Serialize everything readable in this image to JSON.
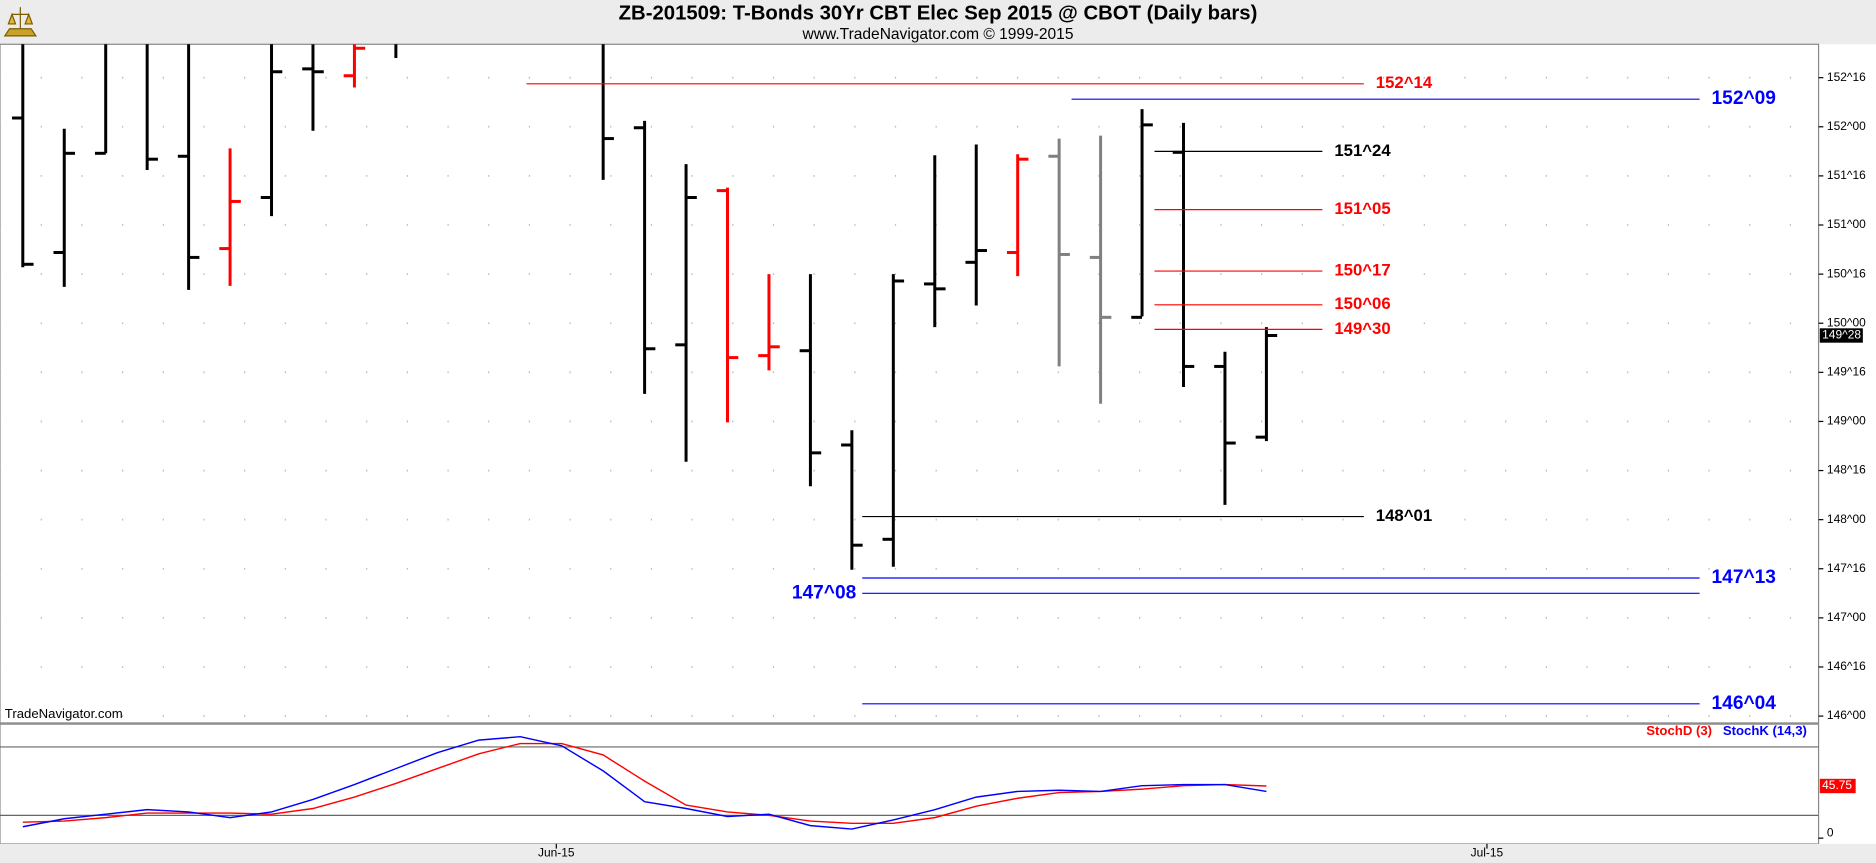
{
  "chart_data": [
    {
      "type": "ohlc",
      "title": "ZB-201509:  T-Bonds 30Yr CBT Elec Sep 2015 @ CBOT  (Daily bars)",
      "subtitle": "www.TradeNavigator.com © 1999-2015",
      "watermark": "TradeNavigator.com",
      "x": [
        0,
        1,
        2,
        3,
        4,
        5,
        6,
        7,
        8,
        9,
        10,
        11,
        12,
        13,
        14,
        15,
        16,
        17,
        18,
        19,
        20,
        21,
        22,
        23,
        24,
        25,
        26,
        27,
        28,
        29,
        30
      ],
      "open": [
        152.09,
        150.72,
        151.73,
        152.9,
        151.7,
        150.76,
        151.28,
        152.59,
        152.52,
        153.1,
        null,
        null,
        null,
        null,
        153.0,
        151.99,
        149.78,
        151.35,
        149.67,
        149.72,
        148.76,
        147.8,
        150.4,
        150.62,
        150.72,
        151.7,
        150.67,
        150.06,
        151.74,
        149.56,
        148.84
      ],
      "high": [
        153.0,
        151.98,
        153.2,
        153.2,
        153.2,
        151.78,
        153.2,
        152.84,
        152.84,
        153.2,
        null,
        null,
        null,
        null,
        153.2,
        152.06,
        151.62,
        151.38,
        150.5,
        150.5,
        148.91,
        150.5,
        151.71,
        151.82,
        151.72,
        151.88,
        151.91,
        152.18,
        152.04,
        149.71,
        149.96
      ],
      "low": [
        150.57,
        150.37,
        151.73,
        151.56,
        150.34,
        150.38,
        151.09,
        151.96,
        152.4,
        152.7,
        null,
        null,
        null,
        null,
        151.46,
        149.28,
        148.59,
        148.99,
        149.52,
        148.34,
        147.49,
        147.52,
        149.96,
        150.18,
        150.48,
        149.56,
        149.18,
        150.07,
        149.35,
        148.15,
        148.8
      ],
      "close": [
        150.6,
        151.73,
        152.9,
        151.67,
        150.67,
        151.24,
        152.56,
        152.56,
        152.8,
        152.9,
        null,
        null,
        null,
        null,
        151.88,
        149.74,
        151.28,
        149.65,
        149.76,
        148.68,
        147.74,
        150.43,
        150.35,
        150.74,
        151.67,
        150.7,
        150.06,
        152.02,
        149.56,
        148.78,
        149.875
      ],
      "colors": [
        "#000000",
        "#000000",
        "#000000",
        "#000000",
        "#000000",
        "#ff0000",
        "#000000",
        "#000000",
        "#ff0000",
        "#000000",
        "#000000",
        "#000000",
        "#000000",
        "#000000",
        "#000000",
        "#000000",
        "#000000",
        "#ff0000",
        "#ff0000",
        "#000000",
        "#000000",
        "#000000",
        "#000000",
        "#000000",
        "#ff0000",
        "#808080",
        "#808080",
        "#000000",
        "#000000",
        "#000000",
        "#000000"
      ],
      "xlim": [
        -0.55,
        43.32
      ],
      "xticks": [
        {
          "value": 12.87,
          "label": "Jun-15"
        },
        {
          "value": 35.32,
          "label": "Jul-15"
        }
      ],
      "ylim": [
        145.93,
        152.84
      ],
      "yticks": [
        {
          "value": 152.5,
          "label": "152^16"
        },
        {
          "value": 152,
          "label": "152^00"
        },
        {
          "value": 151.5,
          "label": "151^16"
        },
        {
          "value": 151,
          "label": "151^00"
        },
        {
          "value": 150.5,
          "label": "150^16"
        },
        {
          "value": 150,
          "label": "150^00"
        },
        {
          "value": 149.5,
          "label": "149^16"
        },
        {
          "value": 149,
          "label": "149^00"
        },
        {
          "value": 148.5,
          "label": "148^16"
        },
        {
          "value": 148,
          "label": "148^00"
        },
        {
          "value": 147.5,
          "label": "147^16"
        },
        {
          "value": 147,
          "label": "147^00"
        },
        {
          "value": 146.5,
          "label": "146^16"
        },
        {
          "value": 146,
          "label": "146^00"
        }
      ],
      "grid": true,
      "last_price": {
        "value": 149.875,
        "label": "149^28"
      },
      "levels": [
        {
          "label": "152^14",
          "value": 152.4375,
          "color": "#ff0000",
          "x_start": 12.15,
          "x_end": 32.35,
          "label_side": "right"
        },
        {
          "label": "152^09",
          "value": 152.28125,
          "color": "#0000ff",
          "x_start": 25.3,
          "x_end": 40.45,
          "label_side": "right"
        },
        {
          "label": "151^24",
          "value": 151.75,
          "color": "#000000",
          "x_start": 27.3,
          "x_end": 31.35,
          "label_side": "right"
        },
        {
          "label": "151^05",
          "value": 151.15625,
          "color": "#ff0000",
          "x_start": 27.3,
          "x_end": 31.35,
          "label_side": "right"
        },
        {
          "label": "150^17",
          "value": 150.53125,
          "color": "#ff0000",
          "x_start": 27.3,
          "x_end": 31.35,
          "label_side": "right"
        },
        {
          "label": "150^06",
          "value": 150.1875,
          "color": "#ff0000",
          "x_start": 27.3,
          "x_end": 31.35,
          "label_side": "right"
        },
        {
          "label": "149^30",
          "value": 149.9375,
          "color": "#ff0000",
          "x_start": 27.3,
          "x_end": 31.35,
          "label_side": "right"
        },
        {
          "label": "148^01",
          "value": 148.03125,
          "color": "#000000",
          "x_start": 20.25,
          "x_end": 32.35,
          "label_side": "right"
        },
        {
          "label": "147^13",
          "value": 147.40625,
          "color": "#0000ff",
          "x_start": 20.25,
          "x_end": 40.45,
          "label_side": "right"
        },
        {
          "label": "147^08",
          "value": 147.25,
          "color": "#0000ff",
          "x_start": 20.25,
          "x_end": 40.45,
          "label_side": "left"
        },
        {
          "label": "146^04",
          "value": 146.125,
          "color": "#0000ff",
          "x_start": 20.25,
          "x_end": 40.45,
          "label_side": "right"
        }
      ]
    },
    {
      "type": "line",
      "x": [
        0,
        1,
        2,
        3,
        4,
        5,
        6,
        7,
        8,
        9,
        10,
        11,
        12,
        13,
        14,
        15,
        16,
        17,
        18,
        19,
        20,
        21,
        22,
        23,
        24,
        25,
        26,
        27,
        28,
        29,
        30
      ],
      "xlim": [
        -0.55,
        43.32
      ],
      "ylim": [
        -5,
        100
      ],
      "yticks": [
        0
      ],
      "levels": [
        80,
        20
      ],
      "series": [
        {
          "name": "StochD (3)",
          "color": "#ff0000",
          "values": [
            14,
            15,
            18,
            22,
            22,
            22,
            21,
            26,
            36,
            48,
            61,
            74,
            83,
            83,
            73,
            50,
            29,
            23,
            20,
            15,
            13,
            13,
            18,
            28,
            35,
            40,
            41,
            43,
            46,
            47,
            45.75
          ],
          "value_labels": [
            null,
            null,
            null,
            null,
            null,
            null,
            null,
            null,
            null,
            null,
            null,
            null,
            null,
            null,
            null,
            null,
            null,
            null,
            null,
            null,
            null,
            null,
            null,
            null,
            null,
            null,
            null,
            null,
            null,
            null,
            "45.75"
          ]
        },
        {
          "name": "StochK (14,3)",
          "color": "#0000ff",
          "values": [
            10,
            17,
            21,
            25,
            23,
            18,
            23,
            34,
            47,
            61,
            75,
            86,
            89,
            81,
            59,
            32,
            26,
            19,
            21,
            11,
            8,
            16,
            25,
            36,
            41,
            42,
            41,
            46,
            47,
            47,
            41
          ]
        }
      ]
    }
  ]
}
